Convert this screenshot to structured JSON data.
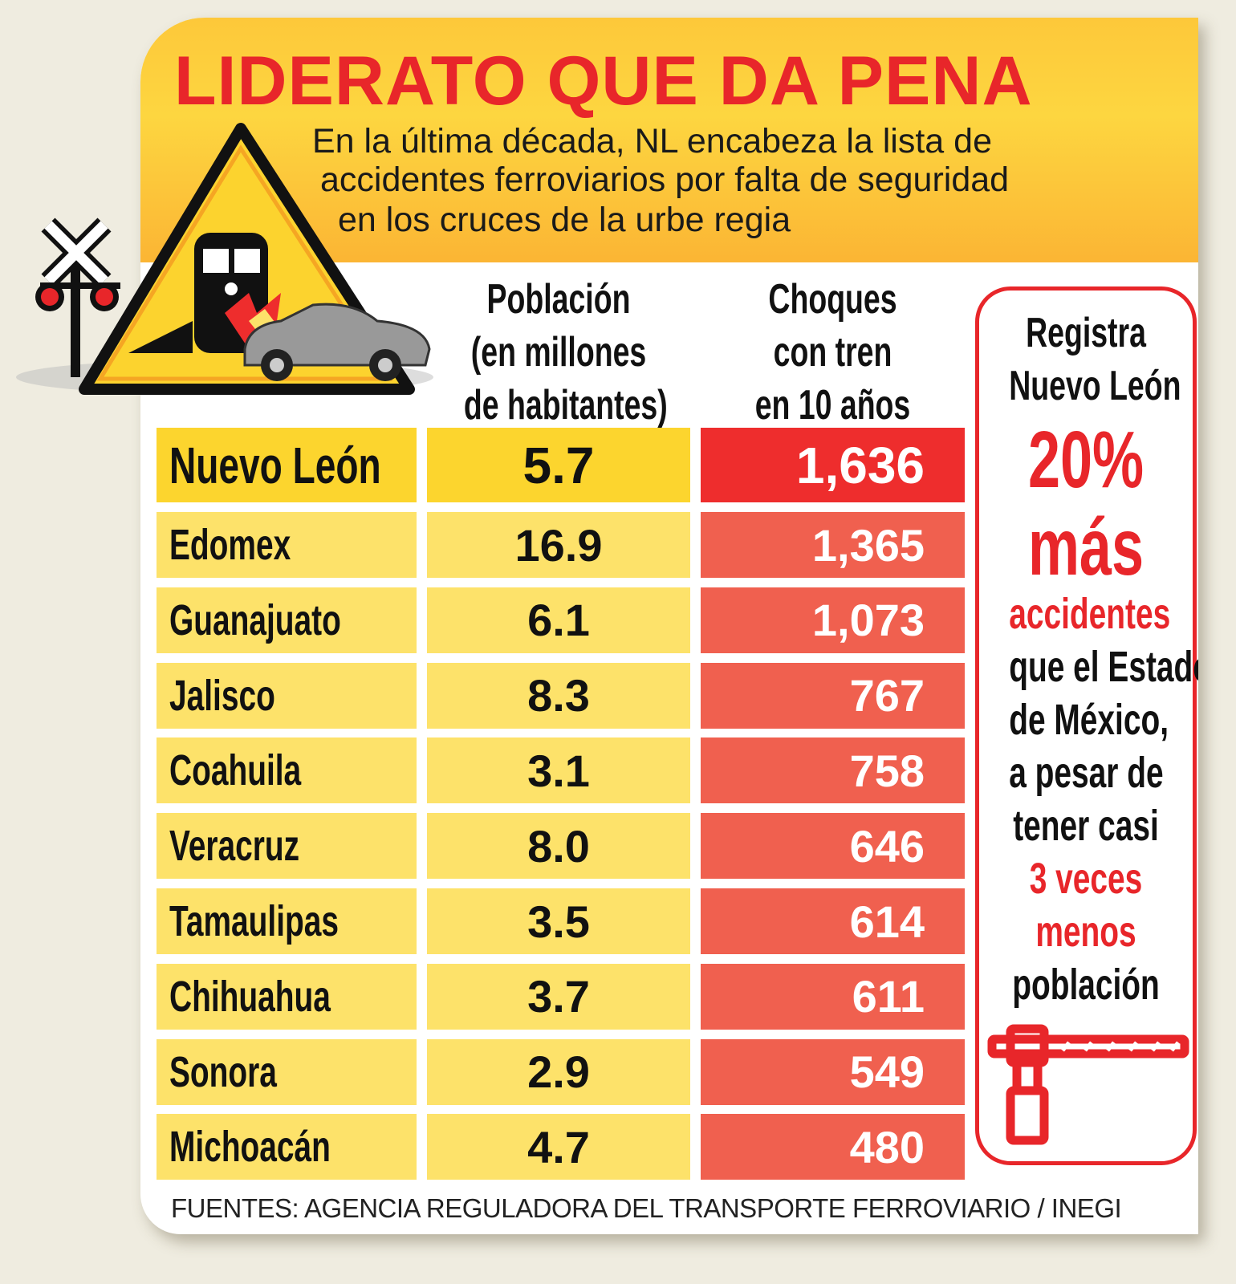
{
  "header": {
    "title": "LIDERATO QUE DA PENA",
    "subtitle_lines": [
      "En la última década, NL encabeza la lista de",
      "accidentes ferroviarios por falta de seguridad",
      "en los cruces de la urbe regia"
    ]
  },
  "chart_data": {
    "type": "table",
    "columns": [
      "",
      "Población (en millones de habitantes)",
      "Choques con tren en 10 años"
    ],
    "column_header_lines": {
      "population": [
        "Población",
        "(en millones",
        "de habitantes)"
      ],
      "crashes": [
        "Choques",
        "con tren",
        "en 10 años"
      ]
    },
    "rows": [
      {
        "state": "Nuevo León",
        "population": "5.7",
        "crashes": "1,636"
      },
      {
        "state": "Edomex",
        "population": "16.9",
        "crashes": "1,365"
      },
      {
        "state": "Guanajuato",
        "population": "6.1",
        "crashes": "1,073"
      },
      {
        "state": "Jalisco",
        "population": "8.3",
        "crashes": "767"
      },
      {
        "state": "Coahuila",
        "population": "3.1",
        "crashes": "758"
      },
      {
        "state": "Veracruz",
        "population": "8.0",
        "crashes": "646"
      },
      {
        "state": "Tamaulipas",
        "population": "3.5",
        "crashes": "614"
      },
      {
        "state": "Chihuahua",
        "population": "3.7",
        "crashes": "611"
      },
      {
        "state": "Sonora",
        "population": "2.9",
        "crashes": "549"
      },
      {
        "state": "Michoacán",
        "population": "4.7",
        "crashes": "480"
      }
    ],
    "colors": {
      "highlight_yellow": "#fcd52e",
      "yellow": "#fde26a",
      "highlight_red": "#ee2d2d",
      "red": "#f0604f"
    }
  },
  "callout": {
    "l1": "Registra",
    "l2": "Nuevo León",
    "l3": "20%",
    "l4": "más",
    "l5": "accidentes",
    "l6": "que el Estado",
    "l7": "de México,",
    "l8": "a pesar de",
    "l9": "tener casi",
    "l10": "3 veces",
    "l11": "menos",
    "l12": "población"
  },
  "icons": [
    "railroad-crossing-sign-icon",
    "train-car-warning-triangle-icon",
    "crossing-barrier-icon"
  ],
  "footer": "FUENTES: AGENCIA REGULADORA DEL TRANSPORTE FERROVIARIO / INEGI"
}
